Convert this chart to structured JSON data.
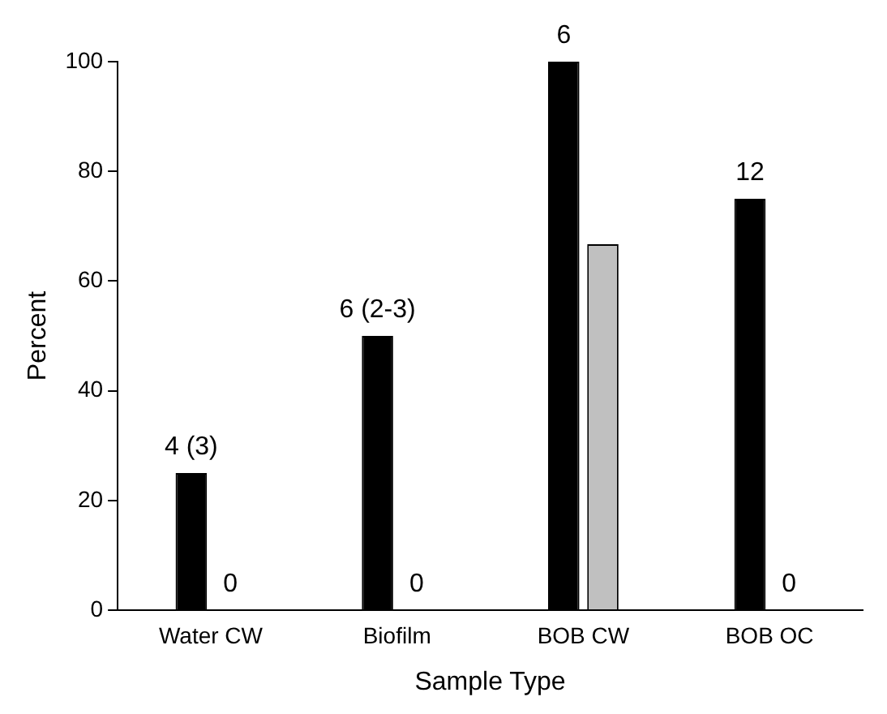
{
  "chart_data": {
    "type": "bar",
    "xlabel": "Sample Type",
    "ylabel": "Percent",
    "categories": [
      "Water CW",
      "Biofilm",
      "BOB CW",
      "BOB OC"
    ],
    "series": [
      {
        "color": "#000000",
        "values": [
          25,
          50,
          100,
          75
        ]
      },
      {
        "color": "#c0c0c0",
        "values": [
          0,
          0,
          66.7,
          0
        ],
        "value_labels": [
          "0",
          "0",
          null,
          "0"
        ]
      }
    ],
    "annotations": [
      {
        "text": "4 (3)",
        "x": "Water CW",
        "y": 25
      },
      {
        "text": "6 (2-3)",
        "x": "Biofilm",
        "y": 50
      },
      {
        "text": "6",
        "x": "BOB CW",
        "y": 100
      },
      {
        "text": "12",
        "x": "BOB OC",
        "y": 75
      }
    ],
    "ylim": [
      0,
      100
    ],
    "yticks": [
      0,
      20,
      40,
      60,
      80,
      100
    ],
    "grid": false,
    "legend": false
  }
}
